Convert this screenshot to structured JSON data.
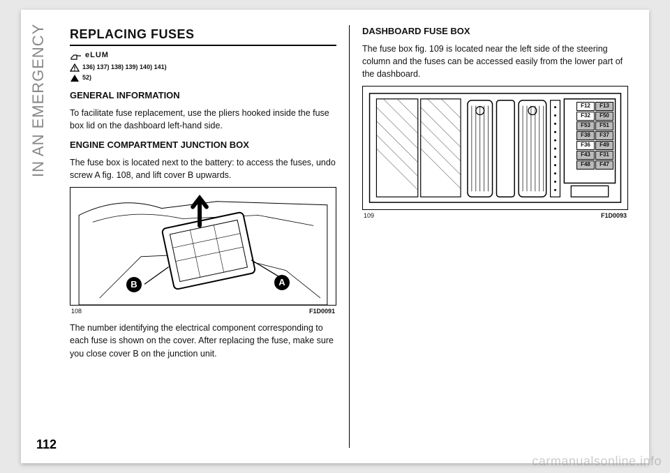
{
  "side_title": "IN AN EMERGENCY",
  "page_number": "112",
  "watermark": "carmanualsonline.info",
  "left": {
    "title": "REPLACING FUSES",
    "warning_refs": "136) 137) 138) 139) 140) 141)",
    "caution_refs": "52)",
    "h_general": "GENERAL INFORMATION",
    "p_general": "To facilitate fuse replacement, use the pliers hooked inside the fuse box lid on the dashboard left-hand side.",
    "h_engine": "ENGINE COMPARTMENT JUNCTION BOX",
    "p_engine": "The fuse box is located next to the battery: to access the fuses, undo screw A fig. 108, and lift cover B upwards.",
    "fig108": {
      "num": "108",
      "code": "F1D0091",
      "markerA": "A",
      "markerB": "B"
    },
    "p_after": "The number identifying the electrical component corresponding to each fuse is shown on the cover. After replacing the fuse, make sure you close cover B on the junction unit."
  },
  "right": {
    "h_dash": "DASHBOARD FUSE BOX",
    "p_dash": "The fuse box fig. 109 is located near the left side of the steering column and the fuses can be accessed easily from the lower part of the dashboard.",
    "fig109": {
      "num": "109",
      "code": "F1D0093",
      "fuses": [
        {
          "l": "F12",
          "g": false
        },
        {
          "l": "F13",
          "g": true
        },
        {
          "l": "F32",
          "g": false
        },
        {
          "l": "F50",
          "g": true
        },
        {
          "l": "F53",
          "g": true
        },
        {
          "l": "F51",
          "g": true
        },
        {
          "l": "F38",
          "g": true
        },
        {
          "l": "F37",
          "g": true
        },
        {
          "l": "F36",
          "g": false
        },
        {
          "l": "F49",
          "g": true
        },
        {
          "l": "F43",
          "g": true
        },
        {
          "l": "F31",
          "g": true
        },
        {
          "l": "F48",
          "g": true
        },
        {
          "l": "F47",
          "g": true
        }
      ]
    }
  }
}
